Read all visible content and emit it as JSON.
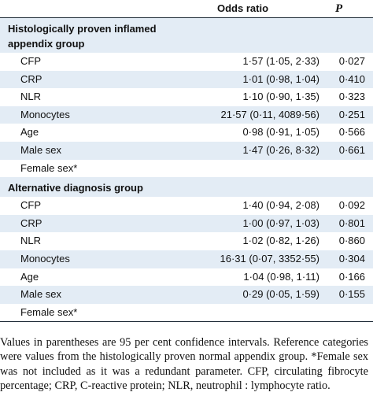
{
  "header": {
    "odds_ratio": "Odds ratio",
    "p": "P"
  },
  "groups": [
    {
      "title": "Histologically proven inflamed appendix group",
      "rows": [
        {
          "label": "CFP",
          "or": "1·57 (1·05, 2·33)",
          "p": "0·027"
        },
        {
          "label": "CRP",
          "or": "1·01 (0·98, 1·04)",
          "p": "0·410"
        },
        {
          "label": "NLR",
          "or": "1·10 (0·90, 1·35)",
          "p": "0·323"
        },
        {
          "label": "Monocytes",
          "or": "21·57 (0·11, 4089·56)",
          "p": "0·251"
        },
        {
          "label": "Age",
          "or": "0·98 (0·91, 1·05)",
          "p": "0·566"
        },
        {
          "label": "Male sex",
          "or": "1·47 (0·26, 8·32)",
          "p": "0·661"
        },
        {
          "label": "Female sex*",
          "or": "",
          "p": ""
        }
      ]
    },
    {
      "title": "Alternative diagnosis group",
      "rows": [
        {
          "label": "CFP",
          "or": "1·40 (0·94, 2·08)",
          "p": "0·092"
        },
        {
          "label": "CRP",
          "or": "1·00 (0·97, 1·03)",
          "p": "0·801"
        },
        {
          "label": "NLR",
          "or": "1·02 (0·82, 1·26)",
          "p": "0·860"
        },
        {
          "label": "Monocytes",
          "or": "16·31 (0·07, 3352·55)",
          "p": "0·304"
        },
        {
          "label": "Age",
          "or": "1·04 (0·98, 1·11)",
          "p": "0·166"
        },
        {
          "label": "Male sex",
          "or": "0·29 (0·05, 1·59)",
          "p": "0·155"
        },
        {
          "label": "Female sex*",
          "or": "",
          "p": ""
        }
      ]
    }
  ],
  "footnote": "Values in parentheses are 95 per cent confidence intervals. Reference categories were values from the histologically proven normal appendix group. *Female sex was not included as it was a redundant parameter. CFP, circulating fibrocyte percentage; CRP, C-reactive protein; NLR, neutrophil : lymphocyte ratio."
}
